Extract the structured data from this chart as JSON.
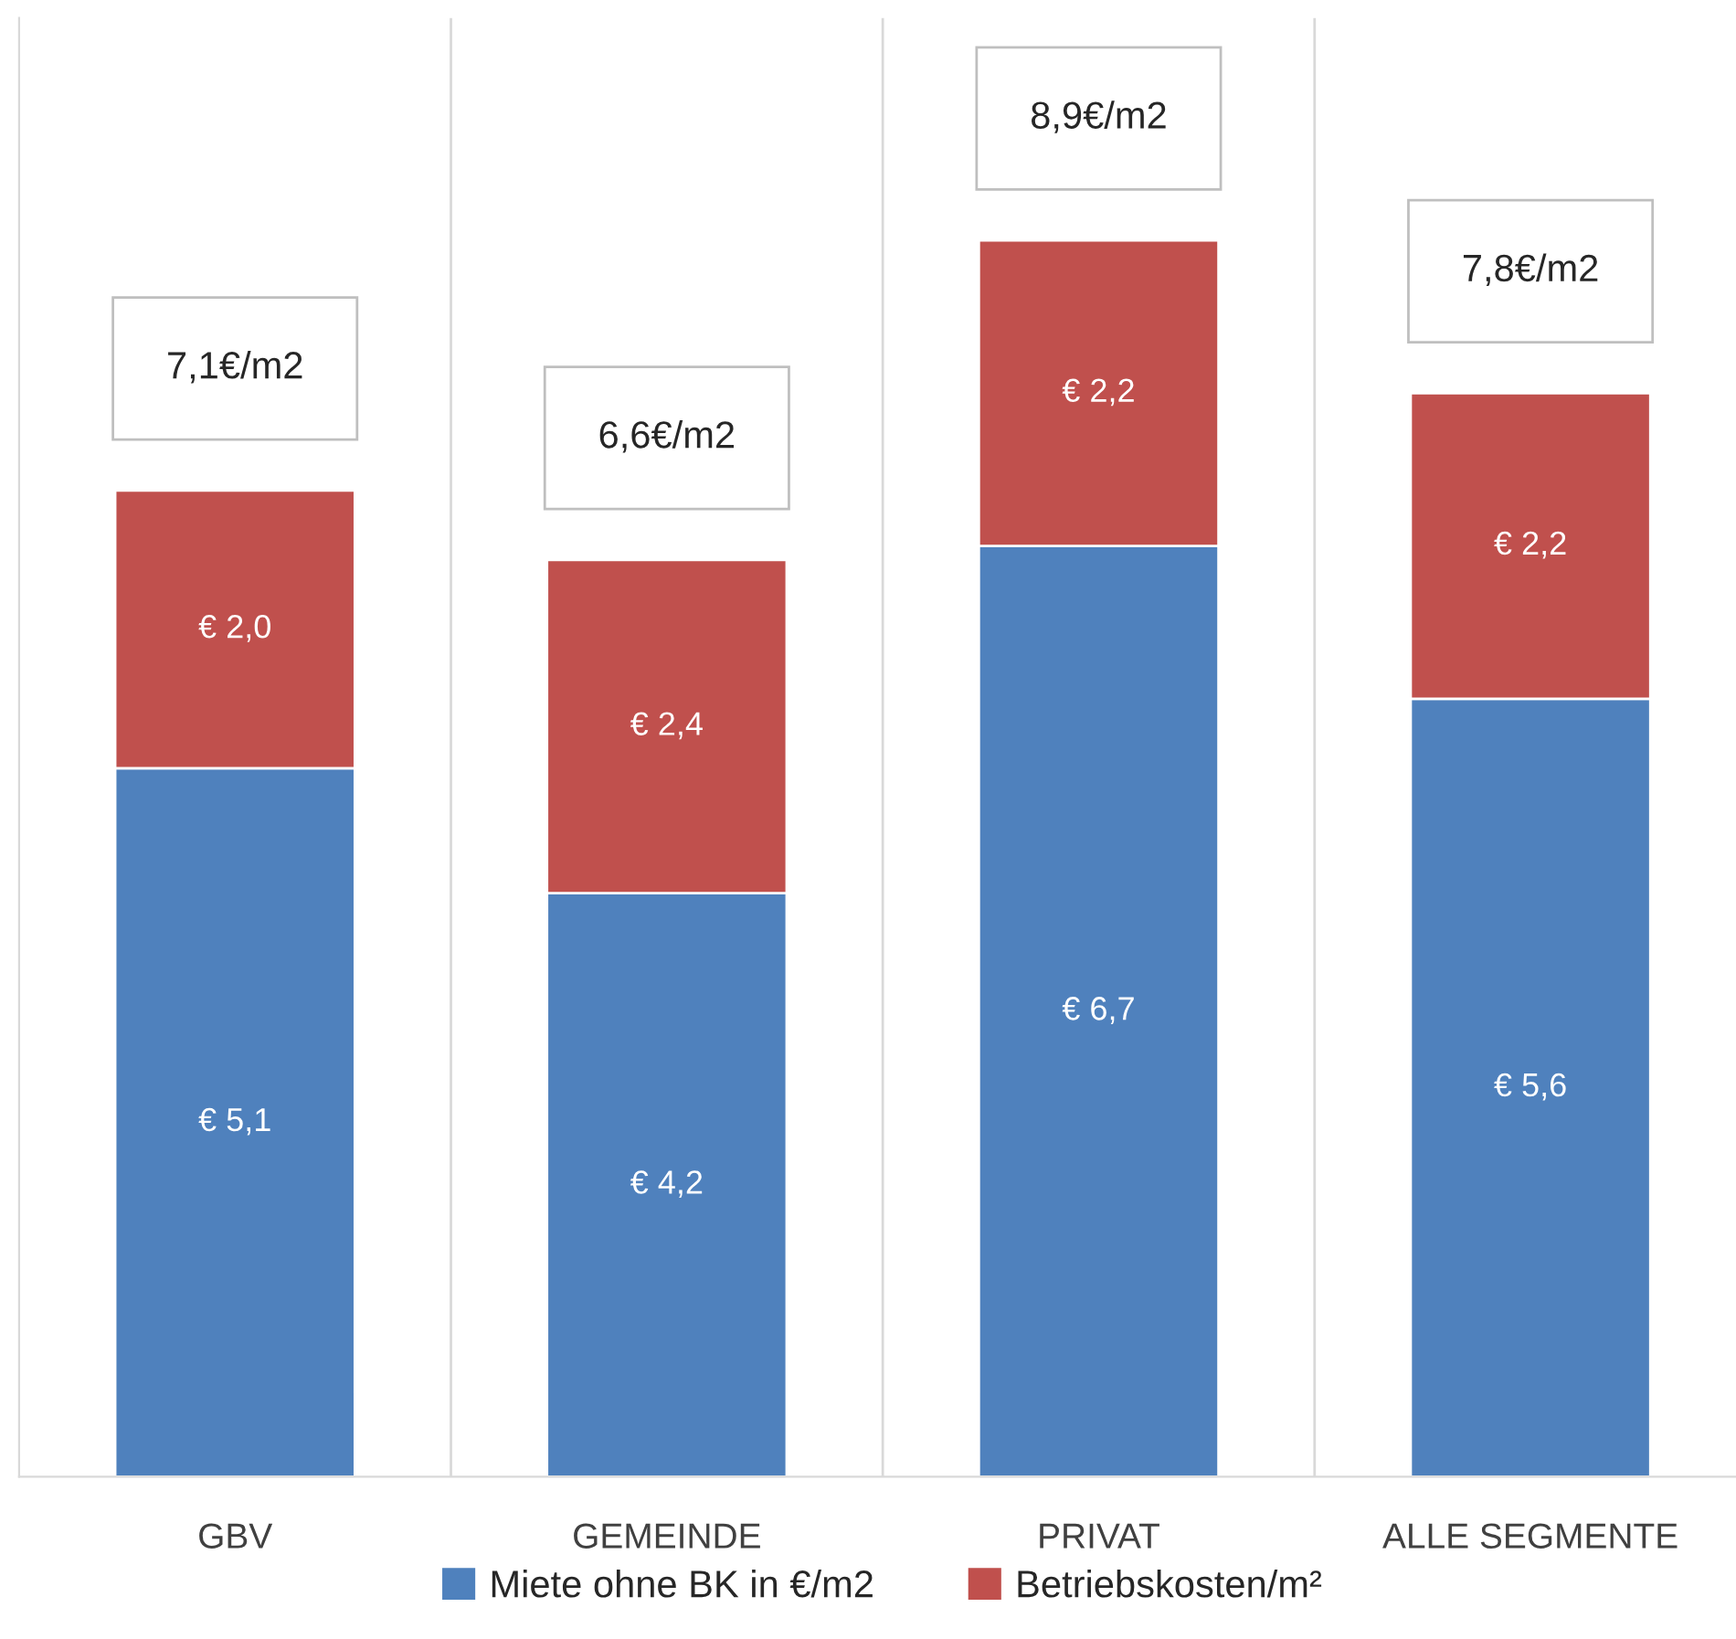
{
  "chart_data": {
    "type": "bar",
    "stacked": true,
    "categories": [
      "GBV",
      "GEMEINDE",
      "PRIVAT",
      "ALLE SEGMENTE"
    ],
    "series": [
      {
        "name": "Miete ohne BK in €/m2",
        "color": "#4f81bd",
        "values": [
          5.1,
          4.2,
          6.7,
          5.6
        ],
        "value_labels": [
          "€ 5,1",
          "€ 4,2",
          "€ 6,7",
          "€ 5,6"
        ]
      },
      {
        "name": "Betriebskosten/m²",
        "color": "#c0504d",
        "values": [
          2.0,
          2.4,
          2.2,
          2.2
        ],
        "value_labels": [
          "€ 2,0",
          "€ 2,4",
          "€ 2,2",
          "€ 2,2"
        ]
      }
    ],
    "totals": [
      "7,1€/m2",
      "6,6€/m2",
      "8,9€/m2",
      "7,8€/m2"
    ],
    "ylim": [
      0,
      10.5
    ],
    "tick_labels": "x",
    "grid": "x",
    "legend": "bottom"
  }
}
